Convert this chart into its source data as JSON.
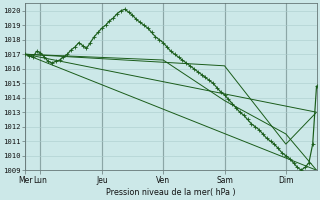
{
  "bg_color": "#cce8e8",
  "grid_color": "#aacccc",
  "line_color": "#1a5c1a",
  "xlabel": "Pression niveau de la mer( hPa )",
  "ylim": [
    1009,
    1020.5
  ],
  "yticks": [
    1009,
    1010,
    1011,
    1012,
    1013,
    1014,
    1015,
    1016,
    1017,
    1018,
    1019,
    1020
  ],
  "day_labels": [
    "Mer",
    "Lun",
    "Jeu",
    "Ven",
    "Sam",
    "Dim"
  ],
  "day_positions": [
    0,
    12,
    60,
    108,
    156,
    204
  ],
  "total_hours": 228,
  "straight_lines": [
    {
      "x": [
        0,
        228
      ],
      "y": [
        1017.0,
        1013.0
      ]
    },
    {
      "x": [
        0,
        228
      ],
      "y": [
        1017.0,
        1009.0
      ]
    },
    {
      "x": [
        0,
        156,
        204,
        228
      ],
      "y": [
        1017.0,
        1016.2,
        1010.8,
        1013.0
      ]
    },
    {
      "x": [
        0,
        108,
        156,
        204,
        228
      ],
      "y": [
        1017.0,
        1016.6,
        1013.8,
        1011.5,
        1009.0
      ]
    }
  ],
  "main_x": [
    0,
    3,
    6,
    9,
    12,
    15,
    18,
    21,
    24,
    27,
    30,
    33,
    36,
    39,
    42,
    45,
    48,
    51,
    54,
    57,
    60,
    63,
    66,
    69,
    72,
    75,
    78,
    81,
    84,
    87,
    90,
    93,
    96,
    99,
    102,
    105,
    108,
    111,
    114,
    117,
    120,
    123,
    126,
    129,
    132,
    135,
    138,
    141,
    144,
    147,
    150,
    153,
    156,
    159,
    162,
    165,
    168,
    171,
    174,
    177,
    180,
    183,
    186,
    189,
    192,
    195,
    198,
    201,
    204,
    207,
    210,
    213,
    216,
    219,
    222,
    225,
    228
  ],
  "main_y": [
    1017.0,
    1016.9,
    1016.8,
    1017.2,
    1017.1,
    1016.8,
    1016.5,
    1016.4,
    1016.5,
    1016.6,
    1016.8,
    1017.0,
    1017.3,
    1017.5,
    1017.8,
    1017.6,
    1017.4,
    1017.8,
    1018.2,
    1018.5,
    1018.8,
    1019.0,
    1019.3,
    1019.5,
    1019.8,
    1020.0,
    1020.1,
    1019.9,
    1019.7,
    1019.4,
    1019.2,
    1019.0,
    1018.8,
    1018.5,
    1018.2,
    1018.0,
    1017.8,
    1017.5,
    1017.2,
    1017.0,
    1016.8,
    1016.6,
    1016.4,
    1016.2,
    1016.0,
    1015.8,
    1015.6,
    1015.4,
    1015.2,
    1015.0,
    1014.7,
    1014.4,
    1014.2,
    1013.9,
    1013.6,
    1013.3,
    1013.0,
    1012.8,
    1012.5,
    1012.2,
    1012.0,
    1011.8,
    1011.5,
    1011.2,
    1011.0,
    1010.8,
    1010.5,
    1010.2,
    1010.0,
    1009.8,
    1009.5,
    1009.2,
    1009.0,
    1009.2,
    1009.5,
    1010.8,
    1014.8
  ]
}
